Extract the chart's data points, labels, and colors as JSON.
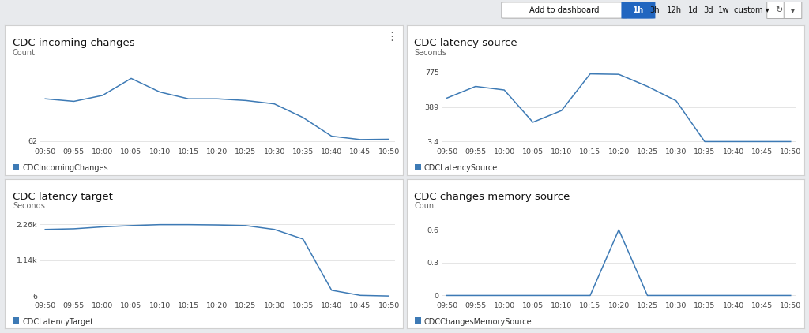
{
  "bg_color": "#e8eaed",
  "panel_color": "#ffffff",
  "line_color": "#3d7ab5",
  "title_fontsize": 9.5,
  "label_fontsize": 7,
  "tick_fontsize": 6.8,
  "legend_fontsize": 7,
  "x_ticks": [
    "09:50",
    "09:55",
    "10:00",
    "10:05",
    "10:10",
    "10:15",
    "10:20",
    "10:25",
    "10:30",
    "10:35",
    "10:40",
    "10:45",
    "10:50"
  ],
  "chart1": {
    "title": "CDC incoming changes",
    "ylabel": "Count",
    "legend": "CDCIncomingChanges",
    "ytick_vals": [
      62
    ],
    "ytick_labels": [
      "62"
    ],
    "ylim_min": 30,
    "ylim_max": 520,
    "y": [
      310,
      295,
      330,
      430,
      350,
      310,
      310,
      300,
      280,
      200,
      90,
      70,
      72
    ]
  },
  "chart2": {
    "title": "CDC latency source",
    "ylabel": "Seconds",
    "legend": "CDCLatencySource",
    "ytick_vals": [
      3.4,
      389,
      775
    ],
    "ytick_labels": [
      "3.4",
      "389",
      "775"
    ],
    "ylim_min": -50,
    "ylim_max": 880,
    "y": [
      490,
      620,
      580,
      220,
      350,
      760,
      755,
      620,
      460,
      3.4,
      3.4,
      3.4,
      3.4
    ]
  },
  "chart3": {
    "title": "CDC latency target",
    "ylabel": "Seconds",
    "legend": "CDCLatencyTarget",
    "ytick_vals": [
      6,
      1140,
      2260
    ],
    "ytick_labels": [
      "6",
      "1.14k",
      "2.26k"
    ],
    "ylim_min": -100,
    "ylim_max": 2500,
    "y": [
      2100,
      2120,
      2180,
      2220,
      2250,
      2250,
      2240,
      2220,
      2100,
      1800,
      200,
      40,
      20
    ]
  },
  "chart4": {
    "title": "CDC changes memory source",
    "ylabel": "Count",
    "legend": "CDCChangesMemorySource",
    "ytick_vals": [
      0,
      0.3,
      0.6
    ],
    "ytick_labels": [
      "0",
      "0.3",
      "0.6"
    ],
    "ylim_min": -0.04,
    "ylim_max": 0.72,
    "y": [
      0,
      0,
      0,
      0,
      0,
      0,
      0.6,
      0,
      0,
      0,
      0,
      0,
      0
    ]
  },
  "toolbar_text": "Add to dashboard",
  "time_buttons": [
    "3h",
    "12h",
    "1d",
    "3d",
    "1w",
    "custom ▾"
  ],
  "time_btn_highlighted": "1h"
}
